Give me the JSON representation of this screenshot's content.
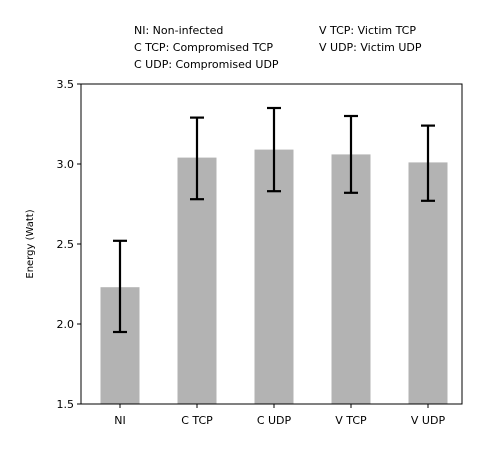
{
  "legend_notes": {
    "left": [
      "NI: Non-infected",
      "C TCP: Compromised TCP",
      "C UDP: Compromised UDP"
    ],
    "right": [
      "V TCP: Victim TCP",
      "V UDP: Victim UDP"
    ]
  },
  "chart_data": {
    "type": "bar",
    "categories": [
      "NI",
      "C TCP",
      "C UDP",
      "V TCP",
      "V UDP"
    ],
    "values": [
      2.23,
      3.04,
      3.09,
      3.06,
      3.01
    ],
    "error_low": [
      1.95,
      2.78,
      2.83,
      2.82,
      2.77
    ],
    "error_high": [
      2.52,
      3.29,
      3.35,
      3.3,
      3.24
    ],
    "ylabel": "Energy (Watt)",
    "ylim": [
      1.5,
      3.5
    ],
    "yticks": [
      "1.5",
      "2.0",
      "2.5",
      "3.0",
      "3.5"
    ],
    "grid": false,
    "bar_color": "#b3b3b3",
    "error_color": "#000000"
  }
}
